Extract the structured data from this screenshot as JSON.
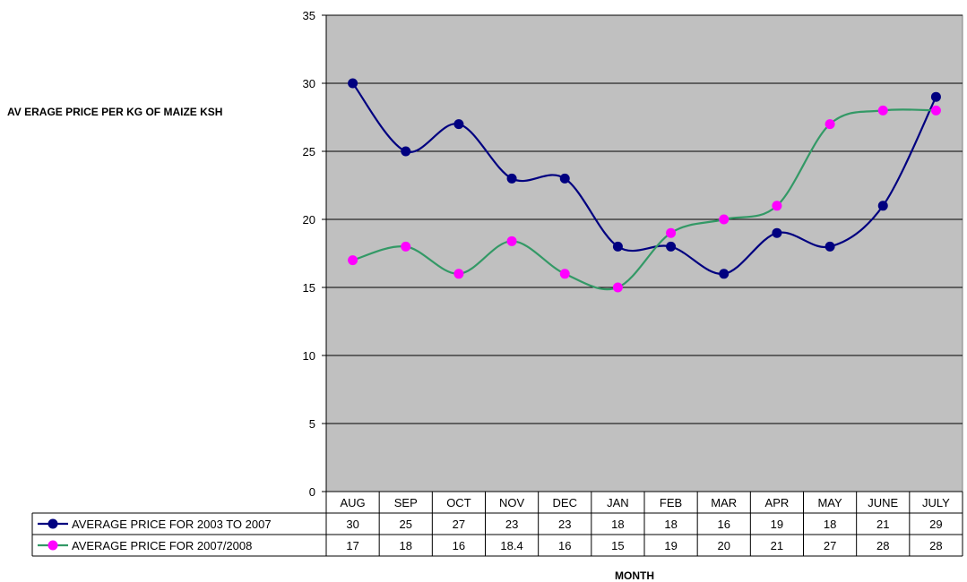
{
  "chart_data": {
    "type": "line",
    "title": "",
    "xlabel": "MONTH",
    "ylabel": "AV ERAGE PRICE PER KG OF MAIZE KSH",
    "categories": [
      "AUG",
      "SEP",
      "OCT",
      "NOV",
      "DEC",
      "JAN",
      "FEB",
      "MAR",
      "APR",
      "MAY",
      "JUNE",
      "JULY"
    ],
    "ylim": [
      0,
      35
    ],
    "yticks": [
      "0",
      "5",
      "10",
      "15",
      "20",
      "25",
      "30",
      "35"
    ],
    "grid": true,
    "smooth": true,
    "legend": "data-table",
    "plot_background": "#C0C0C0",
    "series": [
      {
        "name": "AVERAGE PRICE FOR 2003 TO 2007",
        "values": [
          30,
          25,
          27,
          23,
          23,
          18,
          18,
          16,
          19,
          18,
          21,
          29
        ],
        "labels": [
          "30",
          "25",
          "27",
          "23",
          "23",
          "18",
          "18",
          "16",
          "19",
          "18",
          "21",
          "29"
        ],
        "line_color": "#000080",
        "marker_color": "#000080"
      },
      {
        "name": "AVERAGE PRICE FOR 2007/2008",
        "values": [
          17,
          18,
          16,
          18.4,
          16,
          15,
          19,
          20,
          21,
          27,
          28,
          28
        ],
        "labels": [
          "17",
          "18",
          "16",
          "18.4",
          "16",
          "15",
          "19",
          "20",
          "21",
          "27",
          "28",
          "28"
        ],
        "line_color": "#339966",
        "marker_color": "#FF00FF"
      }
    ]
  }
}
